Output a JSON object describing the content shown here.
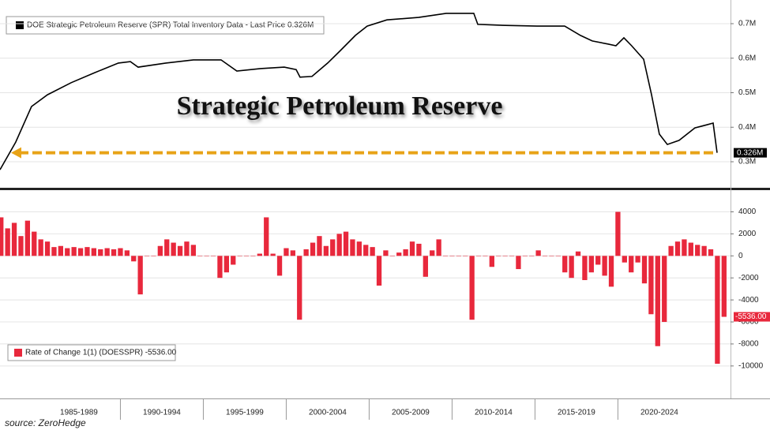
{
  "chart_data": [
    {
      "type": "line",
      "title": "Strategic Petroleum Reserve",
      "legend": "DOE Strategic Petroleum Reserve (SPR) Total Inventory Data - Last Price 0.326M",
      "color": "#000000",
      "x": [
        1982.74,
        1983.69,
        1984.64,
        1985.6,
        1987.03,
        1988.45,
        1989.88,
        1990.6,
        1991.07,
        1992.74,
        1994.4,
        1996.07,
        1997.02,
        1998.45,
        1999.88,
        2000.6,
        2000.83,
        2001.55,
        2002.5,
        2003.22,
        2004.17,
        2004.88,
        2006.07,
        2007.98,
        2009.64,
        2011.31,
        2011.55,
        2013.22,
        2015.12,
        2016.79,
        2017.74,
        2018.45,
        2019.4,
        2019.88,
        2020.36,
        2020.83,
        2021.55,
        2022.03,
        2022.5,
        2022.98,
        2023.69,
        2024.64,
        2025.36,
        2025.74,
        2025.98
      ],
      "values": [
        0.277,
        0.357,
        0.46,
        0.494,
        0.529,
        0.558,
        0.586,
        0.59,
        0.574,
        0.586,
        0.595,
        0.595,
        0.563,
        0.57,
        0.574,
        0.567,
        0.545,
        0.547,
        0.586,
        0.62,
        0.666,
        0.693,
        0.711,
        0.718,
        0.73,
        0.73,
        0.698,
        0.695,
        0.693,
        0.693,
        0.666,
        0.65,
        0.641,
        0.636,
        0.659,
        0.636,
        0.597,
        0.494,
        0.38,
        0.35,
        0.362,
        0.398,
        0.407,
        0.412,
        0.326
      ],
      "last_label": "0.326M",
      "xlim": [
        1982.74,
        2026.79
      ],
      "ylim": [
        0.2246,
        0.7686
      ],
      "yticks": [
        {
          "value": 0.3,
          "label": "0.3M"
        },
        {
          "value": 0.4,
          "label": "0.4M"
        },
        {
          "value": 0.5,
          "label": "0.5M"
        },
        {
          "value": 0.6,
          "label": "0.6M"
        },
        {
          "value": 0.7,
          "label": "0.7M"
        }
      ],
      "grid": true
    },
    {
      "type": "bar",
      "legend": "Rate of Change 1(1) (DOESSPR) -5536.00",
      "source": "source: ZeroHedge",
      "color": "#e8283c",
      "x": [
        1982.8,
        1983.2,
        1983.6,
        1984.0,
        1984.4,
        1984.8,
        1985.2,
        1985.6,
        1986.0,
        1986.4,
        1986.8,
        1987.2,
        1987.6,
        1988.0,
        1988.4,
        1988.8,
        1989.2,
        1989.6,
        1990.0,
        1990.4,
        1990.8,
        1991.2,
        1991.6,
        1992.0,
        1992.4,
        1992.8,
        1993.2,
        1993.6,
        1994.0,
        1994.4,
        1994.8,
        1995.2,
        1995.6,
        1996.0,
        1996.4,
        1996.8,
        1997.2,
        1997.6,
        1998.0,
        1998.4,
        1998.8,
        1999.2,
        1999.6,
        2000.0,
        2000.4,
        2000.8,
        2001.2,
        2001.6,
        2002.0,
        2002.4,
        2002.8,
        2003.2,
        2003.6,
        2004.0,
        2004.4,
        2004.8,
        2005.2,
        2005.6,
        2006.0,
        2006.4,
        2006.8,
        2007.2,
        2007.6,
        2008.0,
        2008.4,
        2008.8,
        2009.2,
        2009.6,
        2010.0,
        2010.4,
        2010.8,
        2011.2,
        2011.6,
        2012.0,
        2012.4,
        2012.8,
        2013.2,
        2013.6,
        2014.0,
        2014.4,
        2014.8,
        2015.2,
        2015.6,
        2016.0,
        2016.4,
        2016.8,
        2017.2,
        2017.6,
        2018.0,
        2018.4,
        2018.8,
        2019.2,
        2019.6,
        2020.0,
        2020.4,
        2020.8,
        2021.2,
        2021.6,
        2022.0,
        2022.4,
        2022.8,
        2023.2,
        2023.6,
        2024.0,
        2024.4,
        2024.8,
        2025.2,
        2025.6,
        2026.0,
        2026.4
      ],
      "values": [
        3500,
        2500,
        3000,
        1800,
        3200,
        2200,
        1500,
        1300,
        800,
        900,
        700,
        800,
        700,
        800,
        700,
        600,
        700,
        600,
        700,
        500,
        -500,
        -3500,
        0,
        0,
        900,
        1500,
        1200,
        900,
        1300,
        1000,
        0,
        0,
        0,
        -2000,
        -1500,
        -800,
        0,
        0,
        0,
        200,
        3500,
        200,
        -1800,
        700,
        500,
        -5800,
        600,
        1200,
        1800,
        900,
        1500,
        2000,
        2200,
        1500,
        1300,
        1000,
        800,
        -2700,
        500,
        0,
        300,
        600,
        1300,
        1100,
        -1900,
        500,
        1500,
        0,
        0,
        0,
        0,
        -5800,
        0,
        0,
        -1000,
        0,
        0,
        0,
        -1200,
        0,
        0,
        500,
        0,
        0,
        0,
        -1500,
        -2000,
        400,
        -2200,
        -1500,
        -800,
        -1800,
        -2800,
        4000,
        -600,
        -1500,
        -600,
        -2500,
        -5300,
        -8200,
        -6000,
        900,
        1300,
        1500,
        1200,
        1000,
        900,
        600,
        -9800,
        -5536
      ],
      "last_label": "-5536.00",
      "xlim": [
        1982.74,
        2026.79
      ],
      "ylim": [
        -12950,
        5970
      ],
      "yticks": [
        -10000,
        -8000,
        -6000,
        -4000,
        -2000,
        0,
        2000,
        4000
      ],
      "xticks": [
        {
          "value": 1987.5,
          "label": "1985-1989"
        },
        {
          "value": 1992.5,
          "label": "1990-1994"
        },
        {
          "value": 1997.5,
          "label": "1995-1999"
        },
        {
          "value": 2002.5,
          "label": "2000-2004"
        },
        {
          "value": 2007.5,
          "label": "2005-2009"
        },
        {
          "value": 2012.5,
          "label": "2010-2014"
        },
        {
          "value": 2017.5,
          "label": "2015-2019"
        },
        {
          "value": 2022.5,
          "label": "2020-2024"
        }
      ],
      "grid": true
    }
  ]
}
